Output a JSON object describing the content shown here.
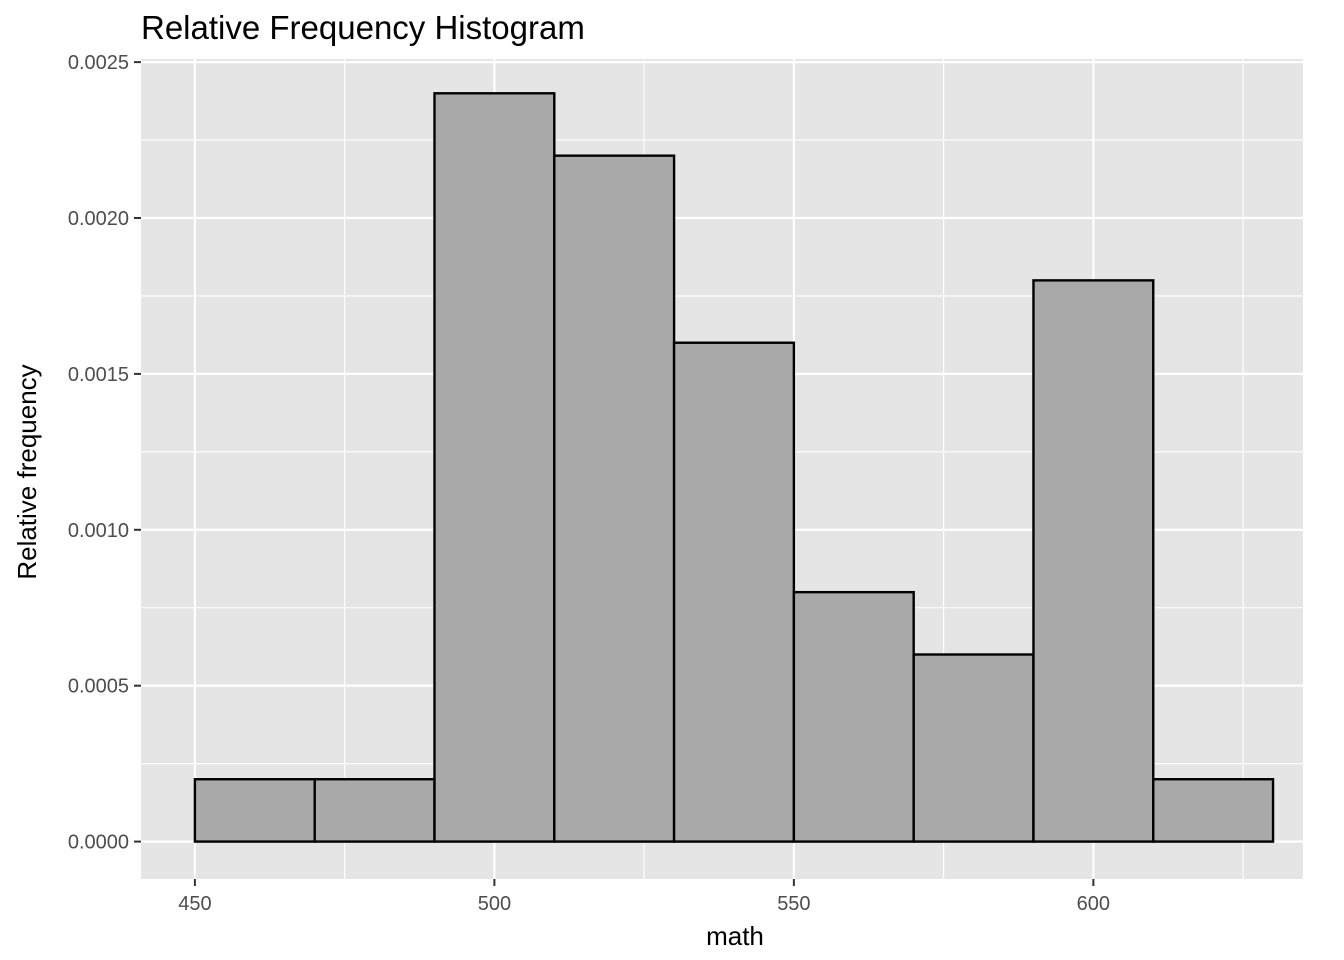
{
  "chart_data": {
    "type": "bar",
    "title": "Relative Frequency Histogram",
    "xlabel": "math",
    "ylabel": "Relative frequency",
    "x_ticks": [
      450,
      500,
      550,
      600
    ],
    "y_ticks": [
      0.0,
      0.0005,
      0.001,
      0.0015,
      0.002,
      0.0025
    ],
    "y_tick_labels": [
      "0.0000",
      "0.0005",
      "0.0010",
      "0.0015",
      "0.0020",
      "0.0025"
    ],
    "xlim": [
      441,
      635
    ],
    "ylim": [
      -0.00012,
      0.00251
    ],
    "bins": [
      {
        "start": 450,
        "end": 470,
        "value": 0.0002
      },
      {
        "start": 470,
        "end": 490,
        "value": 0.0002
      },
      {
        "start": 490,
        "end": 510,
        "value": 0.0024
      },
      {
        "start": 510,
        "end": 530,
        "value": 0.0022
      },
      {
        "start": 530,
        "end": 550,
        "value": 0.0016
      },
      {
        "start": 550,
        "end": 570,
        "value": 0.0008
      },
      {
        "start": 570,
        "end": 590,
        "value": 0.0006
      },
      {
        "start": 590,
        "end": 610,
        "value": 0.0018
      },
      {
        "start": 610,
        "end": 630,
        "value": 0.0002
      }
    ],
    "grid": true,
    "colors": {
      "panel": "#e5e5e5",
      "grid": "#ffffff",
      "bar_fill": "#a9a9a9",
      "bar_stroke": "#000000"
    }
  }
}
